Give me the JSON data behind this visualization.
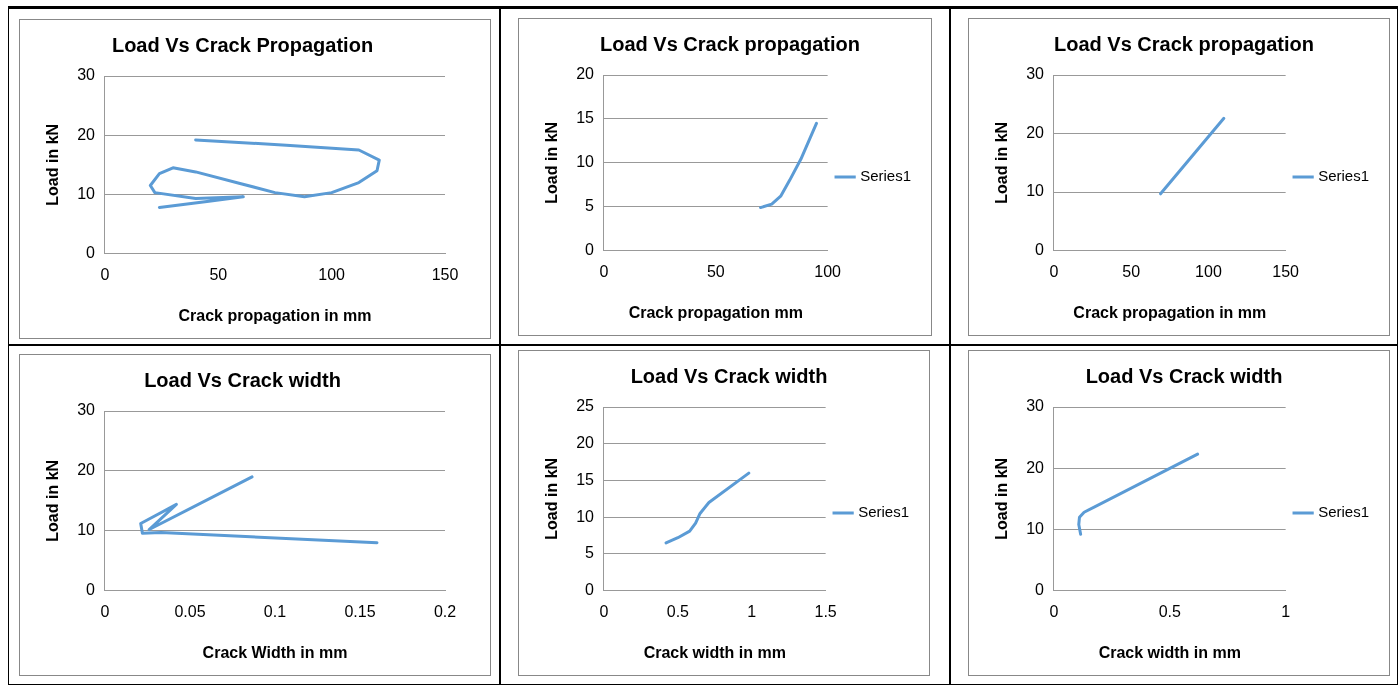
{
  "chart_data": [
    {
      "type": "line",
      "title": "Load Vs Crack Propagation",
      "xlabel": "Crack propagation in mm",
      "ylabel": "Load in kN",
      "xlim": [
        0,
        150
      ],
      "xticks": [
        0,
        50,
        100,
        150
      ],
      "ylim": [
        0,
        30
      ],
      "yticks": [
        0,
        10,
        20,
        30
      ],
      "grid": "y",
      "marker": "none",
      "legend": false,
      "series": [
        {
          "color": "#5b9bd5",
          "x": [
            24,
            45,
            61,
            40,
            22,
            20,
            24,
            30,
            40,
            60,
            75,
            88,
            100,
            112,
            120,
            121,
            112,
            80,
            40
          ],
          "values": [
            7.8,
            8.8,
            9.6,
            9.3,
            10.3,
            11.5,
            13.5,
            14.5,
            13.8,
            11.8,
            10.3,
            9.6,
            10.3,
            12,
            14,
            15.8,
            17.5,
            18.3,
            19.2
          ]
        }
      ]
    },
    {
      "type": "line",
      "title": "Load Vs Crack propagation",
      "xlabel": "Crack propagation mm",
      "ylabel": "Load in kN",
      "xlim": [
        0,
        100
      ],
      "xticks": [
        0,
        50,
        100
      ],
      "ylim": [
        0,
        20
      ],
      "yticks": [
        0,
        5,
        10,
        15,
        20
      ],
      "grid": "y",
      "marker": "none",
      "legend": "right",
      "series": [
        {
          "name": "Series1",
          "color": "#5b9bd5",
          "x": [
            70,
            75,
            79,
            83,
            88,
            95
          ],
          "values": [
            4.9,
            5.3,
            6.2,
            8,
            10.4,
            14.5
          ]
        }
      ]
    },
    {
      "type": "line",
      "title": "Load Vs Crack propagation",
      "xlabel": "Crack propagation in mm",
      "ylabel": "Load in kN",
      "xlim": [
        0,
        150
      ],
      "xticks": [
        0,
        50,
        100,
        150
      ],
      "ylim": [
        0,
        30
      ],
      "yticks": [
        0,
        10,
        20,
        30
      ],
      "grid": "y",
      "marker": "none",
      "legend": "right",
      "series": [
        {
          "name": "Series1",
          "color": "#5b9bd5",
          "x": [
            69,
            110
          ],
          "values": [
            9.7,
            22.6
          ]
        }
      ]
    },
    {
      "type": "line",
      "title": "Load Vs Crack width",
      "xlabel": "Crack Width in mm",
      "ylabel": "Load in kN",
      "xlim": [
        0,
        0.2
      ],
      "xticks": [
        0,
        0.05,
        0.1,
        0.15,
        0.2
      ],
      "ylim": [
        0,
        30
      ],
      "yticks": [
        0,
        10,
        20,
        30
      ],
      "grid": "y",
      "marker": "none",
      "legend": false,
      "series": [
        {
          "color": "#5b9bd5",
          "x": [
            0.16,
            0.033,
            0.022,
            0.021,
            0.042,
            0.026,
            0.0865
          ],
          "values": [
            8.0,
            9.7,
            9.6,
            11.2,
            14.4,
            10.2,
            19.0
          ]
        }
      ]
    },
    {
      "type": "line",
      "title": "Load Vs Crack width",
      "xlabel": "Crack width in mm",
      "ylabel": "Load in kN",
      "xlim": [
        0,
        1.5
      ],
      "xticks": [
        0,
        0.5,
        1,
        1.5
      ],
      "ylim": [
        0,
        25
      ],
      "yticks": [
        0,
        5,
        10,
        15,
        20,
        25
      ],
      "grid": "y",
      "marker": "none",
      "legend": "right",
      "series": [
        {
          "name": "Series1",
          "color": "#5b9bd5",
          "x": [
            0.42,
            0.5,
            0.58,
            0.62,
            0.65,
            0.71,
            0.98
          ],
          "values": [
            6.5,
            7.2,
            8.1,
            9.2,
            10.5,
            12,
            16
          ]
        }
      ]
    },
    {
      "type": "line",
      "title": "Load Vs Crack width",
      "xlabel": "Crack width in mm",
      "ylabel": "Load in kN",
      "xlim": [
        0,
        1
      ],
      "xticks": [
        0,
        0.5,
        1
      ],
      "ylim": [
        0,
        30
      ],
      "yticks": [
        0,
        10,
        20,
        30
      ],
      "grid": "y",
      "marker": "none",
      "legend": "right",
      "series": [
        {
          "name": "Series1",
          "color": "#5b9bd5",
          "x": [
            0.115,
            0.107,
            0.11,
            0.13,
            0.62
          ],
          "values": [
            9.2,
            10.8,
            12,
            12.8,
            22.3
          ]
        }
      ]
    }
  ]
}
